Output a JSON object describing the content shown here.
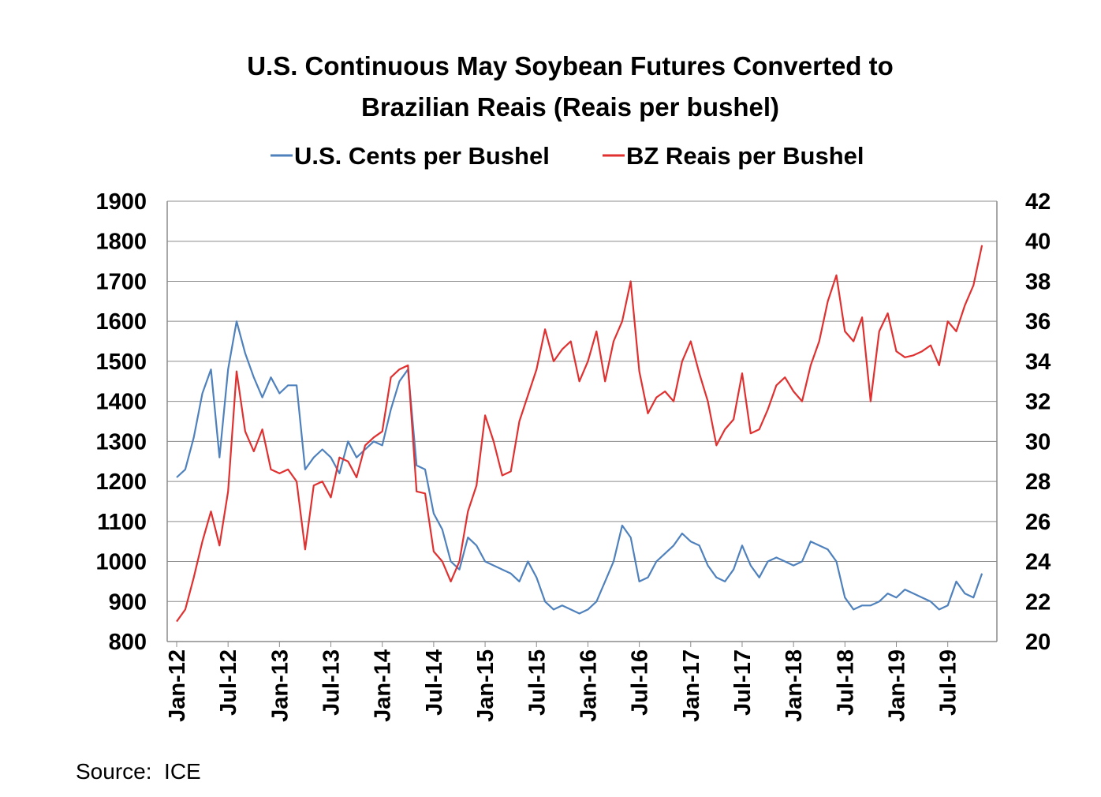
{
  "source": "Source:  ICE",
  "chart_data": {
    "type": "line",
    "title_lines": [
      "U.S. Continuous May Soybean Futures Converted to",
      "Brazilian Reais (Reais per bushel)"
    ],
    "legend_position": "top",
    "grid": true,
    "x_tick_labels": [
      "Jan-12",
      "Jul-12",
      "Jan-13",
      "Jul-13",
      "Jan-14",
      "Jul-14",
      "Jan-15",
      "Jul-15",
      "Jan-16",
      "Jul-16",
      "Jan-17",
      "Jul-17",
      "Jan-18",
      "Jul-18",
      "Jan-19",
      "Jul-19"
    ],
    "y_left": {
      "ylim": [
        800,
        1900
      ],
      "ticks": [
        800,
        900,
        1000,
        1100,
        1200,
        1300,
        1400,
        1500,
        1600,
        1700,
        1800,
        1900
      ]
    },
    "y_right": {
      "ylim": [
        20,
        42
      ],
      "ticks": [
        20,
        22,
        24,
        26,
        28,
        30,
        32,
        34,
        36,
        38,
        40,
        42
      ]
    },
    "x": [
      "2012-01",
      "2012-02",
      "2012-03",
      "2012-04",
      "2012-05",
      "2012-06",
      "2012-07",
      "2012-08",
      "2012-09",
      "2012-10",
      "2012-11",
      "2012-12",
      "2013-01",
      "2013-02",
      "2013-03",
      "2013-04",
      "2013-05",
      "2013-06",
      "2013-07",
      "2013-08",
      "2013-09",
      "2013-10",
      "2013-11",
      "2013-12",
      "2014-01",
      "2014-02",
      "2014-03",
      "2014-04",
      "2014-05",
      "2014-06",
      "2014-07",
      "2014-08",
      "2014-09",
      "2014-10",
      "2014-11",
      "2014-12",
      "2015-01",
      "2015-02",
      "2015-03",
      "2015-04",
      "2015-05",
      "2015-06",
      "2015-07",
      "2015-08",
      "2015-09",
      "2015-10",
      "2015-11",
      "2015-12",
      "2016-01",
      "2016-02",
      "2016-03",
      "2016-04",
      "2016-05",
      "2016-06",
      "2016-07",
      "2016-08",
      "2016-09",
      "2016-10",
      "2016-11",
      "2016-12",
      "2017-01",
      "2017-02",
      "2017-03",
      "2017-04",
      "2017-05",
      "2017-06",
      "2017-07",
      "2017-08",
      "2017-09",
      "2017-10",
      "2017-11",
      "2017-12",
      "2018-01",
      "2018-02",
      "2018-03",
      "2018-04",
      "2018-05",
      "2018-06",
      "2018-07",
      "2018-08",
      "2018-09",
      "2018-10",
      "2018-11",
      "2018-12",
      "2019-01",
      "2019-02",
      "2019-03",
      "2019-04",
      "2019-05",
      "2019-06",
      "2019-07",
      "2019-08",
      "2019-09",
      "2019-10",
      "2019-11"
    ],
    "series": [
      {
        "name": "U.S. Cents per Bushel",
        "color": "#4f81bd",
        "axis": "left",
        "values": [
          1210,
          1230,
          1310,
          1420,
          1480,
          1260,
          1480,
          1600,
          1520,
          1460,
          1410,
          1460,
          1420,
          1440,
          1440,
          1230,
          1260,
          1280,
          1260,
          1220,
          1300,
          1260,
          1280,
          1300,
          1290,
          1380,
          1450,
          1480,
          1240,
          1230,
          1120,
          1080,
          1000,
          980,
          1060,
          1040,
          1000,
          990,
          980,
          970,
          950,
          1000,
          960,
          900,
          880,
          890,
          880,
          870,
          880,
          900,
          950,
          1000,
          1090,
          1060,
          950,
          960,
          1000,
          1020,
          1040,
          1070,
          1050,
          1040,
          990,
          960,
          950,
          980,
          1040,
          990,
          960,
          1000,
          1010,
          1000,
          990,
          1000,
          1050,
          1040,
          1030,
          1000,
          910,
          880,
          890,
          890,
          900,
          920,
          910,
          930,
          920,
          910,
          900,
          880,
          890,
          950,
          920,
          910,
          970
        ]
      },
      {
        "name": "BZ Reais per Bushel",
        "color": "#e03030",
        "axis": "right",
        "values": [
          21.0,
          21.6,
          23.2,
          25.0,
          26.5,
          24.8,
          27.5,
          33.5,
          30.5,
          29.5,
          30.6,
          28.6,
          28.4,
          28.6,
          28.0,
          24.6,
          27.8,
          28.0,
          27.2,
          29.2,
          29.0,
          28.2,
          29.8,
          30.2,
          30.5,
          33.2,
          33.6,
          33.8,
          27.5,
          27.4,
          24.5,
          24.0,
          23.0,
          24.0,
          26.5,
          27.8,
          31.3,
          30.0,
          28.3,
          28.5,
          31.0,
          32.3,
          33.6,
          35.6,
          34.0,
          34.6,
          35.0,
          33.0,
          34.0,
          35.5,
          33.0,
          35.0,
          36.0,
          38.0,
          33.5,
          31.4,
          32.2,
          32.5,
          32.0,
          34.0,
          35.0,
          33.4,
          32.0,
          29.8,
          30.6,
          31.1,
          33.4,
          30.4,
          30.6,
          31.6,
          32.8,
          33.2,
          32.5,
          32.0,
          33.8,
          35.0,
          37.0,
          38.3,
          35.5,
          35.0,
          36.2,
          32.0,
          35.5,
          36.4,
          34.5,
          34.2,
          34.3,
          34.5,
          34.8,
          33.8,
          36.0,
          35.5,
          36.8,
          37.8,
          39.8
        ]
      }
    ]
  }
}
